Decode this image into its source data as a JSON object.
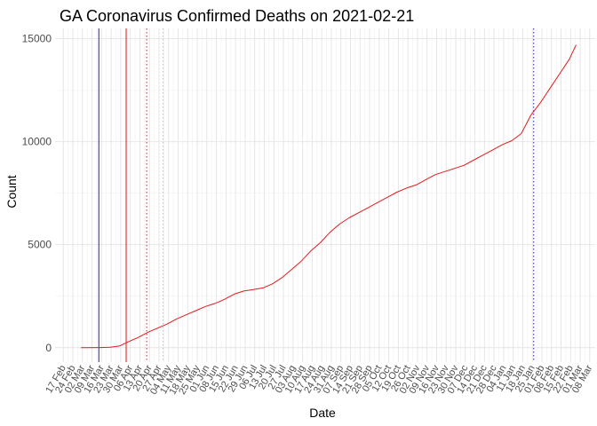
{
  "chart_data": {
    "type": "line",
    "title": "GA Coronavirus Confirmed Deaths on 2021-02-21",
    "xlabel": "Date",
    "ylabel": "Count",
    "ylim": [
      -700,
      15500
    ],
    "xlim": [
      "2020-02-11",
      "2021-03-12"
    ],
    "grid": true,
    "y_ticks": [
      0,
      5000,
      10000,
      15000
    ],
    "x_tick_labels": [
      "17 Feb",
      "24 Feb",
      "02 Mar",
      "09 Mar",
      "16 Mar",
      "23 Mar",
      "30 Mar",
      "06 Apr",
      "13 Apr",
      "20 Apr",
      "27 Apr",
      "04 May",
      "11 May",
      "18 May",
      "25 May",
      "01 Jun",
      "08 Jun",
      "15 Jun",
      "22 Jun",
      "29 Jun",
      "06 Jul",
      "13 Jul",
      "20 Jul",
      "27 Jul",
      "03 Aug",
      "10 Aug",
      "17 Aug",
      "24 Aug",
      "31 Aug",
      "07 Sep",
      "14 Sep",
      "21 Sep",
      "28 Sep",
      "05 Oct",
      "12 Oct",
      "19 Oct",
      "26 Oct",
      "02 Nov",
      "09 Nov",
      "16 Nov",
      "23 Nov",
      "30 Nov",
      "07 Dec",
      "14 Dec",
      "21 Dec",
      "28 Dec",
      "04 Jan",
      "11 Jan",
      "18 Jan",
      "25 Jan",
      "01 Feb",
      "08 Feb",
      "15 Feb",
      "22 Feb",
      "01 Mar",
      "08 Mar"
    ],
    "x_tick_dates": [
      "2020-02-17",
      "2020-02-24",
      "2020-03-02",
      "2020-03-09",
      "2020-03-16",
      "2020-03-23",
      "2020-03-30",
      "2020-04-06",
      "2020-04-13",
      "2020-04-20",
      "2020-04-27",
      "2020-05-04",
      "2020-05-11",
      "2020-05-18",
      "2020-05-25",
      "2020-06-01",
      "2020-06-08",
      "2020-06-15",
      "2020-06-22",
      "2020-06-29",
      "2020-07-06",
      "2020-07-13",
      "2020-07-20",
      "2020-07-27",
      "2020-08-03",
      "2020-08-10",
      "2020-08-17",
      "2020-08-24",
      "2020-08-31",
      "2020-09-07",
      "2020-09-14",
      "2020-09-21",
      "2020-09-28",
      "2020-10-05",
      "2020-10-12",
      "2020-10-19",
      "2020-10-26",
      "2020-11-02",
      "2020-11-09",
      "2020-11-16",
      "2020-11-23",
      "2020-11-30",
      "2020-12-07",
      "2020-12-14",
      "2020-12-21",
      "2020-12-28",
      "2021-01-04",
      "2021-01-11",
      "2021-01-18",
      "2021-01-25",
      "2021-02-01",
      "2021-02-08",
      "2021-02-15",
      "2021-02-22",
      "2021-03-01",
      "2021-03-08"
    ],
    "series": [
      {
        "color": "#e41a1c",
        "points": [
          [
            "2020-03-01",
            0
          ],
          [
            "2020-03-15",
            5
          ],
          [
            "2020-03-22",
            20
          ],
          [
            "2020-03-29",
            80
          ],
          [
            "2020-04-05",
            300
          ],
          [
            "2020-04-12",
            500
          ],
          [
            "2020-04-19",
            750
          ],
          [
            "2020-04-26",
            950
          ],
          [
            "2020-05-03",
            1150
          ],
          [
            "2020-05-10",
            1400
          ],
          [
            "2020-05-17",
            1600
          ],
          [
            "2020-05-24",
            1800
          ],
          [
            "2020-05-31",
            2000
          ],
          [
            "2020-06-07",
            2150
          ],
          [
            "2020-06-14",
            2350
          ],
          [
            "2020-06-21",
            2600
          ],
          [
            "2020-06-28",
            2750
          ],
          [
            "2020-07-05",
            2820
          ],
          [
            "2020-07-12",
            2900
          ],
          [
            "2020-07-19",
            3100
          ],
          [
            "2020-07-26",
            3400
          ],
          [
            "2020-08-02",
            3800
          ],
          [
            "2020-08-09",
            4200
          ],
          [
            "2020-08-16",
            4700
          ],
          [
            "2020-08-23",
            5100
          ],
          [
            "2020-08-30",
            5600
          ],
          [
            "2020-09-06",
            6000
          ],
          [
            "2020-09-13",
            6300
          ],
          [
            "2020-09-20",
            6550
          ],
          [
            "2020-09-27",
            6800
          ],
          [
            "2020-10-04",
            7050
          ],
          [
            "2020-10-11",
            7300
          ],
          [
            "2020-10-18",
            7550
          ],
          [
            "2020-10-25",
            7750
          ],
          [
            "2020-11-01",
            7900
          ],
          [
            "2020-11-08",
            8150
          ],
          [
            "2020-11-15",
            8400
          ],
          [
            "2020-11-22",
            8550
          ],
          [
            "2020-11-29",
            8700
          ],
          [
            "2020-12-06",
            8850
          ],
          [
            "2020-12-13",
            9100
          ],
          [
            "2020-12-20",
            9350
          ],
          [
            "2020-12-27",
            9600
          ],
          [
            "2021-01-03",
            9850
          ],
          [
            "2021-01-10",
            10050
          ],
          [
            "2021-01-17",
            10400
          ],
          [
            "2021-01-24",
            11300
          ],
          [
            "2021-01-31",
            11900
          ],
          [
            "2021-02-07",
            12600
          ],
          [
            "2021-02-14",
            13300
          ],
          [
            "2021-02-21",
            14000
          ],
          [
            "2021-02-26",
            14700
          ]
        ]
      }
    ],
    "reference_lines": [
      {
        "date": "2020-03-14",
        "color": "#1f1fb4",
        "style": "solid"
      },
      {
        "date": "2020-04-03",
        "color": "#e41a1c",
        "style": "solid"
      },
      {
        "date": "2020-04-18",
        "color": "#e41a1c",
        "style": "dotted"
      },
      {
        "date": "2020-04-30",
        "color": "#f4a6a6",
        "style": "dotted"
      },
      {
        "date": "2021-01-26",
        "color": "#1f1fb4",
        "style": "dotted"
      }
    ]
  }
}
